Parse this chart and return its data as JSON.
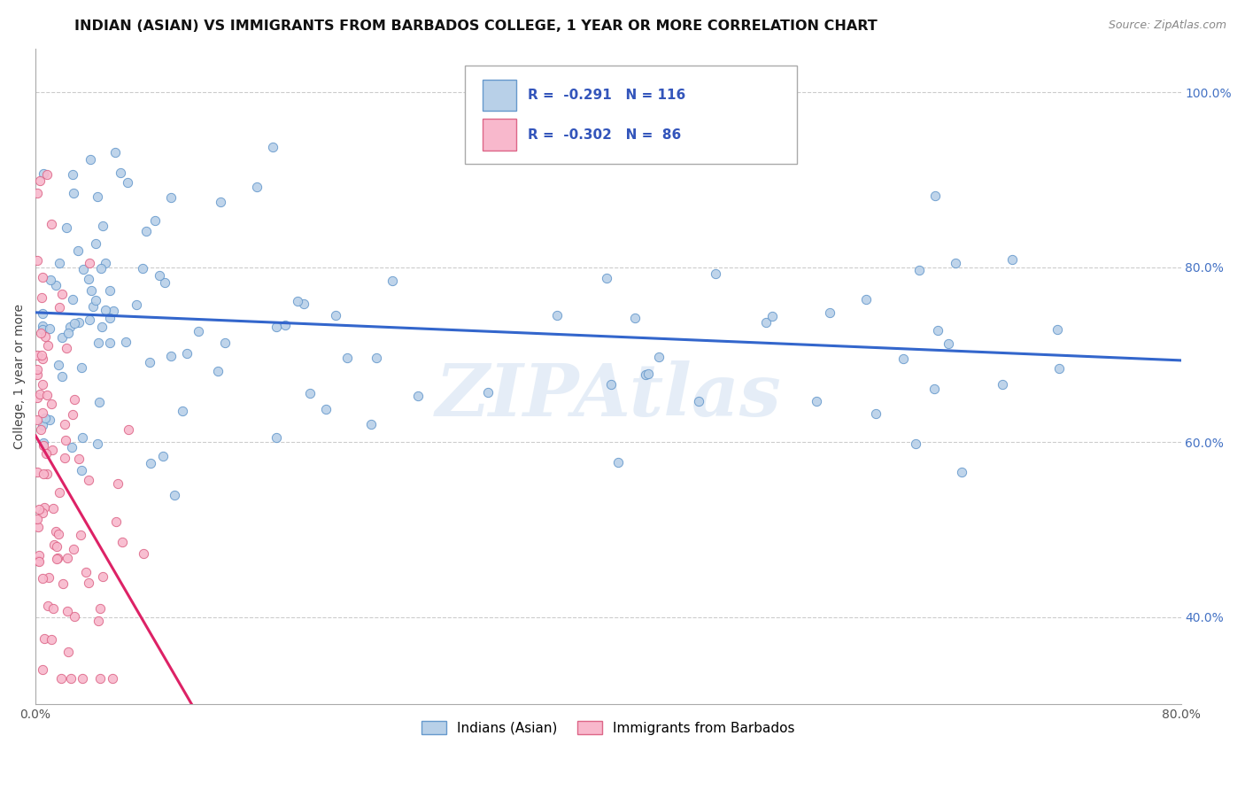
{
  "title": "INDIAN (ASIAN) VS IMMIGRANTS FROM BARBADOS COLLEGE, 1 YEAR OR MORE CORRELATION CHART",
  "source": "Source: ZipAtlas.com",
  "ylabel": "College, 1 year or more",
  "xlim": [
    0.0,
    0.8
  ],
  "ylim": [
    0.3,
    1.05
  ],
  "xtick_positions": [
    0.0,
    0.1,
    0.2,
    0.3,
    0.4,
    0.5,
    0.6,
    0.7,
    0.8
  ],
  "xticklabels": [
    "0.0%",
    "",
    "",
    "",
    "",
    "",
    "",
    "",
    "80.0%"
  ],
  "ytick_positions": [
    0.4,
    0.6,
    0.8,
    1.0
  ],
  "yticklabels": [
    "40.0%",
    "60.0%",
    "80.0%",
    "100.0%"
  ],
  "series1_label": "Indians (Asian)",
  "series1_R": -0.291,
  "series1_N": 116,
  "series1_color": "#b8d0e8",
  "series1_edge_color": "#6699cc",
  "series1_trend_color": "#3366cc",
  "series2_label": "Immigrants from Barbados",
  "series2_R": -0.302,
  "series2_N": 86,
  "series2_color": "#f8b8cc",
  "series2_edge_color": "#dd6688",
  "series2_trend_color": "#dd2266",
  "watermark": "ZIPAtlas",
  "bg_color": "#ffffff",
  "grid_color": "#cccccc",
  "title_fontsize": 11.5,
  "axis_label_fontsize": 10,
  "tick_fontsize": 10,
  "legend_fontsize": 11,
  "marker_size": 55
}
